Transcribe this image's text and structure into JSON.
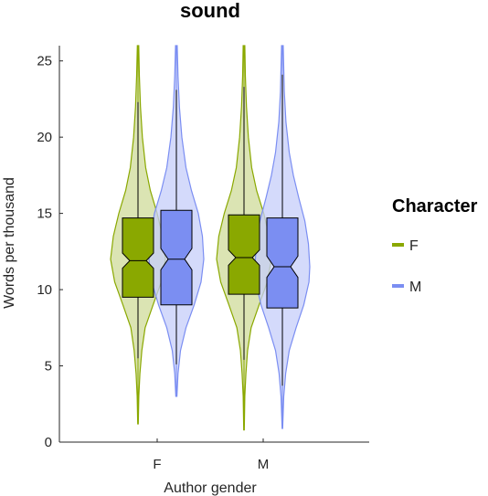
{
  "chart_data": {
    "type": "violin",
    "title": "sound",
    "xlabel": "Author gender",
    "ylabel": "Words per thousand",
    "ylim": [
      0,
      26
    ],
    "yticks": [
      0,
      5,
      10,
      15,
      20,
      25
    ],
    "categories": [
      "F",
      "M"
    ],
    "legend": {
      "title": "Character",
      "placement": "right"
    },
    "series": [
      {
        "name": "F",
        "color": "#8aa800",
        "fill": "#cfdb99",
        "groups": [
          {
            "category": "F",
            "min": 5.5,
            "q1": 9.5,
            "median": 11.9,
            "q3": 14.7,
            "max": 22.3,
            "notch_low": 11.4,
            "notch_high": 12.4,
            "tail_low": 1.2,
            "tail_high": 26,
            "density": [
              [
                1.2,
                0.01
              ],
              [
                3,
                0.03
              ],
              [
                4.5,
                0.07
              ],
              [
                6,
                0.14
              ],
              [
                7.5,
                0.26
              ],
              [
                9,
                0.55
              ],
              [
                10.5,
                0.85
              ],
              [
                12,
                1.0
              ],
              [
                13.5,
                0.9
              ],
              [
                15,
                0.7
              ],
              [
                16.5,
                0.45
              ],
              [
                18,
                0.28
              ],
              [
                20,
                0.16
              ],
              [
                22,
                0.09
              ],
              [
                24,
                0.05
              ],
              [
                26,
                0.025
              ]
            ]
          },
          {
            "category": "M",
            "min": 5.4,
            "q1": 9.7,
            "median": 12.1,
            "q3": 14.9,
            "max": 23.3,
            "notch_low": 11.6,
            "notch_high": 12.6,
            "tail_low": 0.8,
            "tail_high": 26,
            "density": [
              [
                0.8,
                0.01
              ],
              [
                3,
                0.03
              ],
              [
                4.5,
                0.07
              ],
              [
                6,
                0.13
              ],
              [
                7.5,
                0.26
              ],
              [
                9,
                0.55
              ],
              [
                10.5,
                0.85
              ],
              [
                12,
                1.0
              ],
              [
                13.5,
                0.92
              ],
              [
                15,
                0.72
              ],
              [
                16.5,
                0.46
              ],
              [
                18,
                0.28
              ],
              [
                20,
                0.16
              ],
              [
                22,
                0.09
              ],
              [
                24,
                0.05
              ],
              [
                26,
                0.03
              ]
            ]
          }
        ]
      },
      {
        "name": "M",
        "color": "#7b8ef2",
        "fill": "#c6cdf9",
        "groups": [
          {
            "category": "F",
            "min": 5.1,
            "q1": 9.0,
            "median": 12.0,
            "q3": 15.2,
            "max": 23.1,
            "notch_low": 11.3,
            "notch_high": 12.7,
            "tail_low": 3.0,
            "tail_high": 26,
            "density": [
              [
                3,
                0.02
              ],
              [
                4.5,
                0.06
              ],
              [
                6,
                0.15
              ],
              [
                7.5,
                0.35
              ],
              [
                9,
                0.65
              ],
              [
                10.5,
                0.9
              ],
              [
                12,
                1.0
              ],
              [
                13.5,
                0.95
              ],
              [
                15,
                0.8
              ],
              [
                16.5,
                0.55
              ],
              [
                18,
                0.35
              ],
              [
                20,
                0.2
              ],
              [
                22,
                0.11
              ],
              [
                24,
                0.06
              ],
              [
                26,
                0.03
              ]
            ]
          },
          {
            "category": "M",
            "min": 3.7,
            "q1": 8.8,
            "median": 11.5,
            "q3": 14.7,
            "max": 24.1,
            "notch_low": 10.8,
            "notch_high": 12.2,
            "tail_low": 0.9,
            "tail_high": 26,
            "density": [
              [
                0.9,
                0.01
              ],
              [
                3,
                0.05
              ],
              [
                4.5,
                0.12
              ],
              [
                6,
                0.25
              ],
              [
                7.5,
                0.5
              ],
              [
                9,
                0.78
              ],
              [
                10.5,
                0.97
              ],
              [
                11.5,
                1.0
              ],
              [
                13,
                0.95
              ],
              [
                14.5,
                0.82
              ],
              [
                16,
                0.6
              ],
              [
                17.5,
                0.4
              ],
              [
                19,
                0.25
              ],
              [
                21,
                0.13
              ],
              [
                23,
                0.07
              ],
              [
                26,
                0.03
              ]
            ]
          }
        ]
      }
    ]
  }
}
